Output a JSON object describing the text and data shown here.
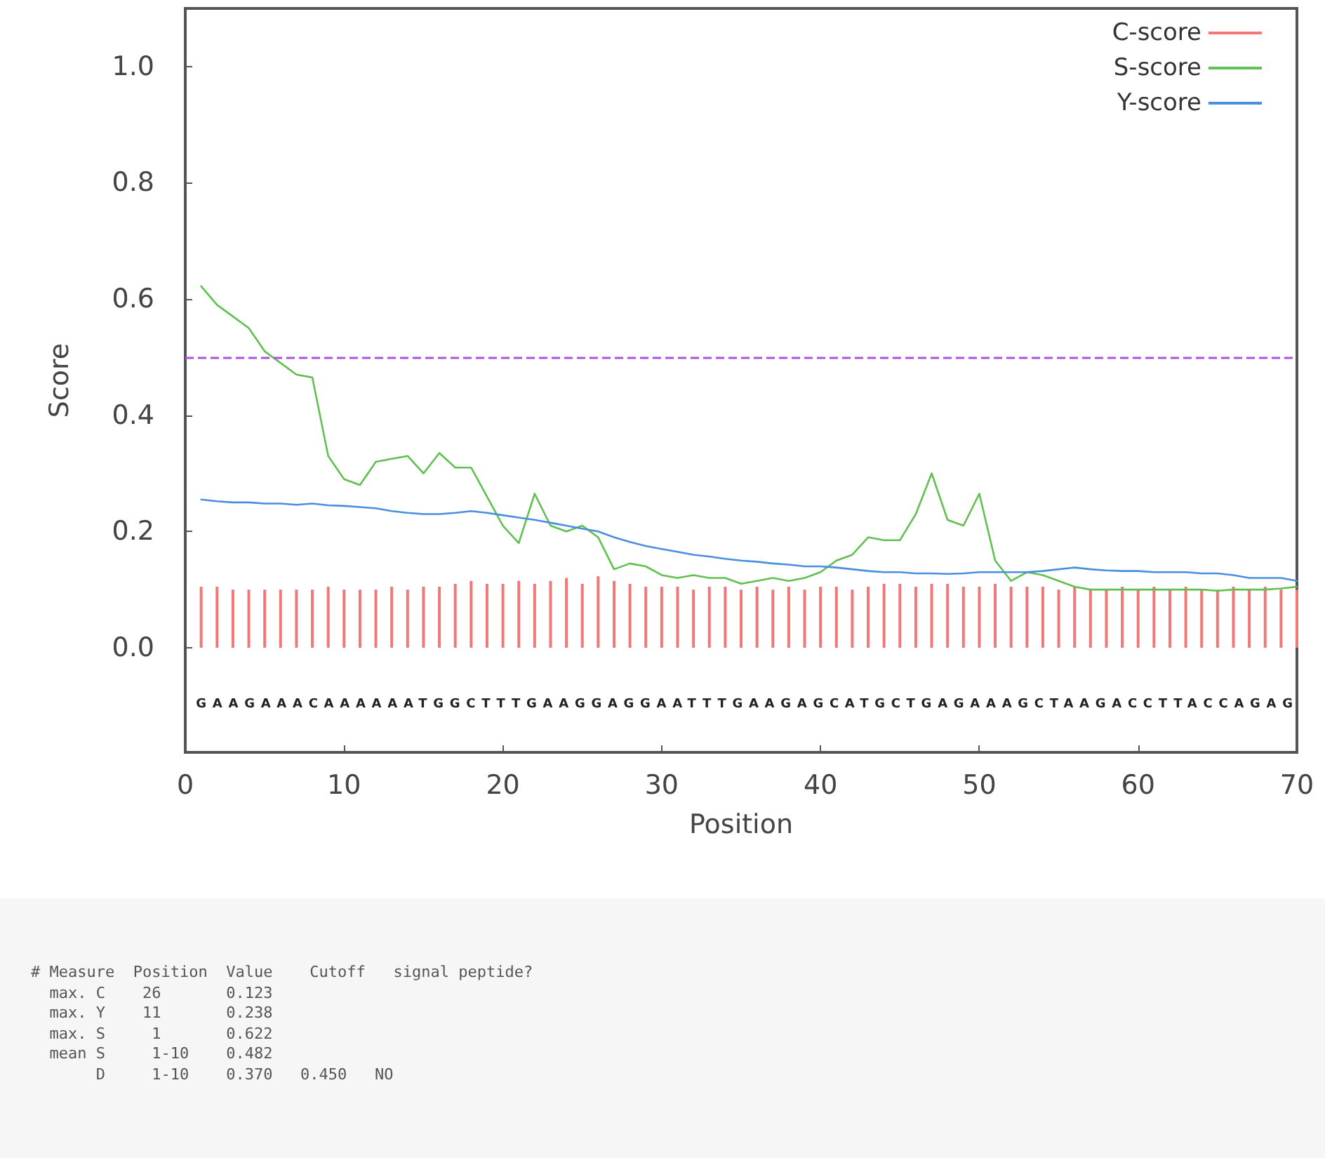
{
  "chart_data": {
    "type": "line",
    "xlabel": "Position",
    "ylabel": "Score",
    "x": [
      1,
      2,
      3,
      4,
      5,
      6,
      7,
      8,
      9,
      10,
      11,
      12,
      13,
      14,
      15,
      16,
      17,
      18,
      19,
      20,
      21,
      22,
      23,
      24,
      25,
      26,
      27,
      28,
      29,
      30,
      31,
      32,
      33,
      34,
      35,
      36,
      37,
      38,
      39,
      40,
      41,
      42,
      43,
      44,
      45,
      46,
      47,
      48,
      49,
      50,
      51,
      52,
      53,
      54,
      55,
      56,
      57,
      58,
      59,
      60,
      61,
      62,
      63,
      64,
      65,
      66,
      67,
      68,
      69,
      70
    ],
    "series": [
      {
        "name": "C-score",
        "type": "bar",
        "color": "#f07878",
        "values": [
          0.105,
          0.105,
          0.1,
          0.1,
          0.1,
          0.1,
          0.1,
          0.1,
          0.105,
          0.1,
          0.1,
          0.1,
          0.105,
          0.1,
          0.105,
          0.105,
          0.11,
          0.115,
          0.11,
          0.11,
          0.115,
          0.11,
          0.115,
          0.12,
          0.11,
          0.123,
          0.115,
          0.11,
          0.105,
          0.105,
          0.105,
          0.1,
          0.105,
          0.105,
          0.1,
          0.105,
          0.1,
          0.105,
          0.1,
          0.105,
          0.105,
          0.1,
          0.105,
          0.11,
          0.11,
          0.105,
          0.11,
          0.11,
          0.105,
          0.105,
          0.11,
          0.105,
          0.105,
          0.105,
          0.1,
          0.105,
          0.1,
          0.1,
          0.105,
          0.1,
          0.105,
          0.1,
          0.105,
          0.1,
          0.1,
          0.105,
          0.1,
          0.105,
          0.1,
          0.1
        ]
      },
      {
        "name": "S-score",
        "color": "#60c050",
        "values": [
          0.622,
          0.59,
          0.57,
          0.55,
          0.51,
          0.49,
          0.47,
          0.465,
          0.33,
          0.29,
          0.28,
          0.32,
          0.325,
          0.33,
          0.3,
          0.335,
          0.31,
          0.31,
          0.26,
          0.21,
          0.18,
          0.265,
          0.21,
          0.2,
          0.21,
          0.19,
          0.135,
          0.145,
          0.14,
          0.125,
          0.12,
          0.125,
          0.12,
          0.12,
          0.11,
          0.115,
          0.12,
          0.115,
          0.12,
          0.13,
          0.15,
          0.16,
          0.19,
          0.185,
          0.185,
          0.23,
          0.3,
          0.22,
          0.21,
          0.265,
          0.15,
          0.115,
          0.13,
          0.125,
          0.115,
          0.105,
          0.1,
          0.1,
          0.1,
          0.1,
          0.1,
          0.1,
          0.1,
          0.1,
          0.098,
          0.1,
          0.1,
          0.1,
          0.102,
          0.105
        ]
      },
      {
        "name": "Y-score",
        "color": "#4a8ee0",
        "values": [
          0.255,
          0.252,
          0.25,
          0.25,
          0.248,
          0.248,
          0.246,
          0.248,
          0.245,
          0.244,
          0.242,
          0.24,
          0.235,
          0.232,
          0.23,
          0.23,
          0.232,
          0.235,
          0.232,
          0.228,
          0.224,
          0.22,
          0.215,
          0.21,
          0.205,
          0.2,
          0.19,
          0.182,
          0.175,
          0.17,
          0.165,
          0.16,
          0.157,
          0.153,
          0.15,
          0.148,
          0.145,
          0.143,
          0.14,
          0.14,
          0.138,
          0.135,
          0.132,
          0.13,
          0.13,
          0.128,
          0.128,
          0.127,
          0.128,
          0.13,
          0.13,
          0.13,
          0.13,
          0.132,
          0.135,
          0.138,
          0.135,
          0.133,
          0.132,
          0.132,
          0.13,
          0.13,
          0.13,
          0.128,
          0.128,
          0.125,
          0.12,
          0.12,
          0.12,
          0.115
        ]
      }
    ],
    "xlim": [
      0,
      70
    ],
    "xticks": [
      0,
      10,
      20,
      30,
      40,
      50,
      60,
      70
    ],
    "ylim": [
      -0.18,
      1.1
    ],
    "yticks": [
      {
        "value": 0,
        "label": "0.0"
      },
      {
        "value": 0.2,
        "label": "0.2"
      },
      {
        "value": 0.4,
        "label": "0.4"
      },
      {
        "value": 0.6,
        "label": "0.6"
      },
      {
        "value": 0.8,
        "label": "0.8"
      },
      {
        "value": 1,
        "label": "1.0"
      }
    ],
    "ref_lines": [
      {
        "axis": "y",
        "value": 0.5,
        "color": "#b050e0",
        "line_style": "dashed"
      }
    ],
    "grid": false,
    "legend": "top right",
    "marker": "none",
    "line_style": "solid",
    "annotations": [
      "GAAGAAACAAAAAATGGCTTTGAAGGAGGAATTTGAAGAGCATGCTGAGAAAGCTAAGACCTTACCAGAG",
      "# Measure  Position  Value    Cutoff   signal peptide?",
      "  max. C    26       0.123",
      "  max. Y    11       0.238",
      "  max. S     1       0.622",
      "  mean S     1-10    0.482",
      "       D     1-10    0.370   0.450   NO"
    ]
  }
}
